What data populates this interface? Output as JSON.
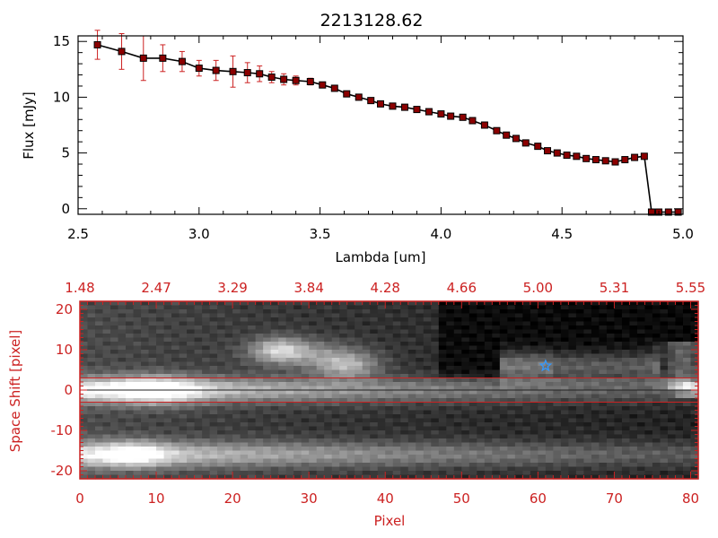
{
  "figure_title": "2213128.62",
  "chart_data": [
    {
      "type": "line",
      "title": "2213128.62",
      "xlabel": "Lambda [um]",
      "ylabel": "Flux [mJy]",
      "xlim": [
        2.5,
        5.0
      ],
      "ylim": [
        -0.5,
        15.5
      ],
      "xticks": [
        2.5,
        3.0,
        3.5,
        4.0,
        4.5,
        5.0
      ],
      "xtick_labels": [
        "2.5",
        "3.0",
        "3.5",
        "4.0",
        "4.5",
        "5.0"
      ],
      "yticks": [
        0,
        5,
        10,
        15
      ],
      "ytick_labels": [
        "0",
        "5",
        "10",
        "15"
      ],
      "line_color": "#000000",
      "marker_color": "#8b0000",
      "error_color": "#cc2222",
      "series": [
        {
          "name": "spectrum",
          "x": [
            2.58,
            2.68,
            2.77,
            2.85,
            2.93,
            3.0,
            3.07,
            3.14,
            3.2,
            3.25,
            3.3,
            3.35,
            3.4,
            3.46,
            3.51,
            3.56,
            3.61,
            3.66,
            3.71,
            3.75,
            3.8,
            3.85,
            3.9,
            3.95,
            4.0,
            4.04,
            4.09,
            4.13,
            4.18,
            4.23,
            4.27,
            4.31,
            4.35,
            4.4,
            4.44,
            4.48,
            4.52,
            4.56,
            4.6,
            4.64,
            4.68,
            4.72,
            4.76,
            4.8,
            4.84,
            4.87,
            4.9,
            4.94,
            4.98
          ],
          "y": [
            14.7,
            14.1,
            13.5,
            13.5,
            13.2,
            12.6,
            12.4,
            12.3,
            12.2,
            12.1,
            11.8,
            11.6,
            11.5,
            11.4,
            11.1,
            10.8,
            10.3,
            10.0,
            9.7,
            9.4,
            9.2,
            9.1,
            8.9,
            8.7,
            8.5,
            8.3,
            8.2,
            7.9,
            7.5,
            7.0,
            6.6,
            6.3,
            5.9,
            5.6,
            5.2,
            5.0,
            4.8,
            4.7,
            4.5,
            4.4,
            4.3,
            4.2,
            4.4,
            4.6,
            4.7,
            -0.3,
            -0.3,
            -0.3,
            -0.3
          ],
          "yerr": [
            1.3,
            1.6,
            2.0,
            1.2,
            0.9,
            0.7,
            0.9,
            1.4,
            0.9,
            0.7,
            0.5,
            0.5,
            0.4,
            0.3,
            0.2,
            0.2,
            0.2,
            0.2,
            0.2,
            0.2,
            0.1,
            0.1,
            0.1,
            0.1,
            0.1,
            0.1,
            0.1,
            0.1,
            0.1,
            0.1,
            0.1,
            0.1,
            0.1,
            0.1,
            0.1,
            0.1,
            0.1,
            0.1,
            0.1,
            0.1,
            0.1,
            0.1,
            0.1,
            0.1,
            0.1,
            0.1,
            0.1,
            0.1,
            0.1
          ]
        }
      ]
    },
    {
      "type": "heatmap",
      "xlabel": "Pixel",
      "ylabel": "Space Shift [pixel]",
      "xlim": [
        0,
        81
      ],
      "ylim": [
        -22,
        22
      ],
      "xticks": [
        0,
        10,
        20,
        30,
        40,
        50,
        60,
        70,
        80
      ],
      "xtick_labels": [
        "0",
        "10",
        "20",
        "30",
        "40",
        "50",
        "60",
        "70",
        "80"
      ],
      "yticks": [
        -20,
        -10,
        0,
        10,
        20
      ],
      "ytick_labels": [
        "-20",
        "-10",
        "0",
        "10",
        "20"
      ],
      "top_axis_ticks": [
        0,
        10,
        20,
        30,
        40,
        50,
        60,
        70,
        80
      ],
      "top_axis_labels": [
        "1.48",
        "2.47",
        "3.29",
        "3.84",
        "4.28",
        "4.66",
        "5.00",
        "5.31",
        "5.55"
      ],
      "axis_color": "#cc2222",
      "trace_band": [
        -3,
        3
      ],
      "center_line": 0,
      "marker": {
        "label": "star",
        "x": 61,
        "y": 6,
        "color": "#3399ff"
      }
    }
  ]
}
